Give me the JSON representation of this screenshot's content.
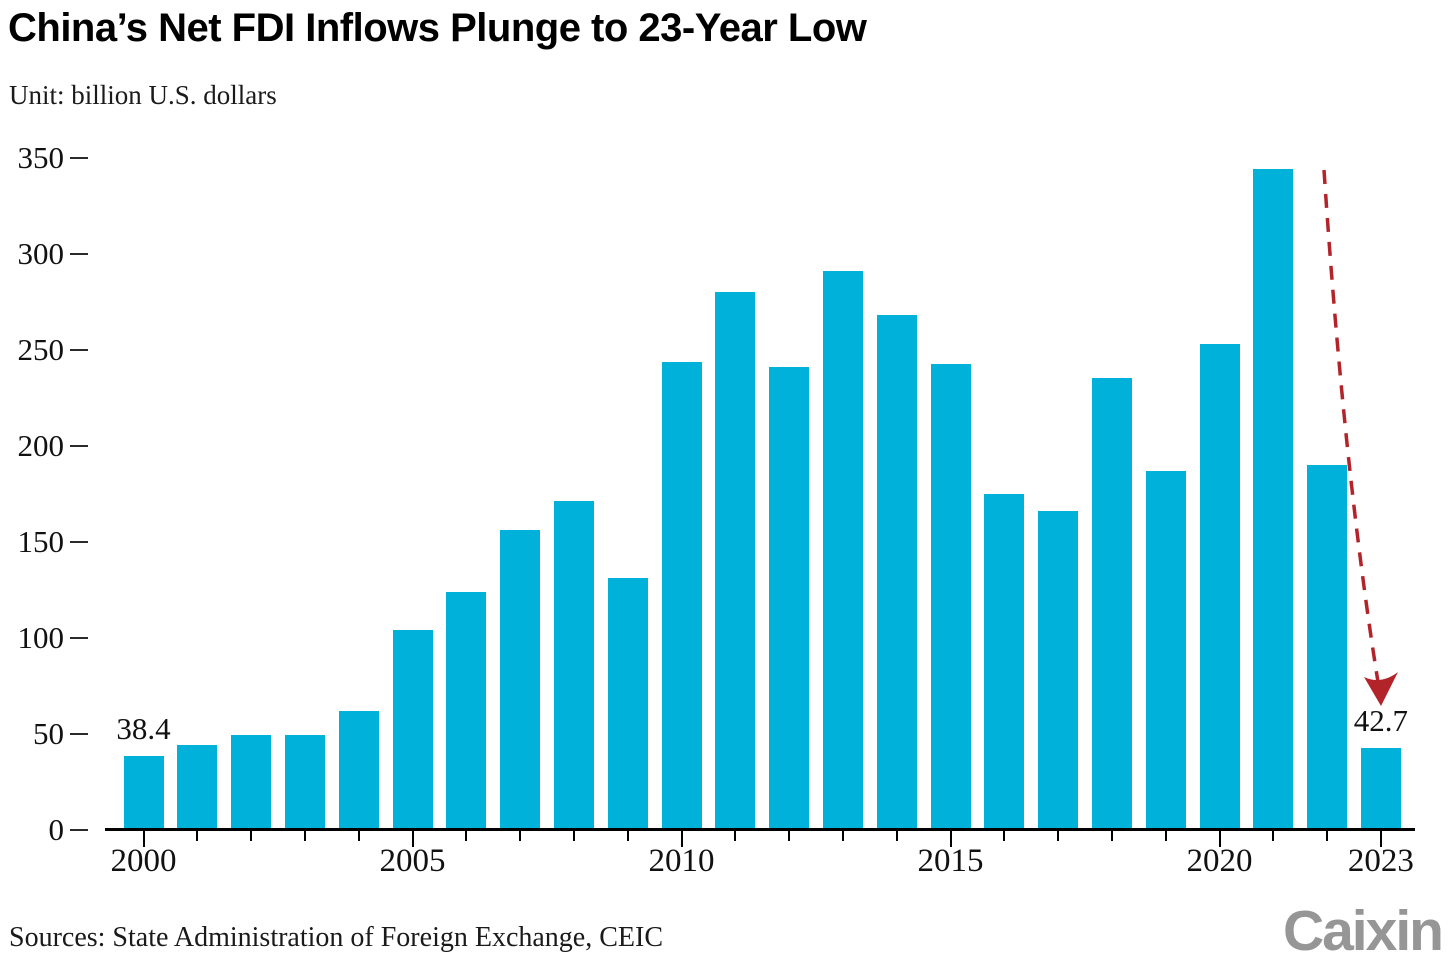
{
  "header": {
    "title": "China’s Net FDI Inflows Plunge to 23-Year Low",
    "unit_label": "Unit: billion U.S. dollars"
  },
  "footer": {
    "sources": "Sources: State Administration of Foreign Exchange, CEIC",
    "brand": "Caixin"
  },
  "colors": {
    "bar": "#00b2d9",
    "arrow": "#b3242a",
    "axis": "#000000",
    "brand_gray": "#969696"
  },
  "chart_data": {
    "type": "bar",
    "title": "China’s Net FDI Inflows Plunge to 23-Year Low",
    "unit": "billion U.S. dollars",
    "categories": [
      2000,
      2001,
      2002,
      2003,
      2004,
      2005,
      2006,
      2007,
      2008,
      2009,
      2010,
      2011,
      2012,
      2013,
      2014,
      2015,
      2016,
      2017,
      2018,
      2019,
      2020,
      2021,
      2022,
      2023
    ],
    "values": [
      38.4,
      44.2,
      49.3,
      49.5,
      62.1,
      104.1,
      124.1,
      156.2,
      171.5,
      131.1,
      243.7,
      280.1,
      241.2,
      290.9,
      268.1,
      242.5,
      174.8,
      166.1,
      235.4,
      187.2,
      253.1,
      344.1,
      190.2,
      42.7
    ],
    "xlabel": "",
    "ylabel": "",
    "ylim": [
      0,
      350
    ],
    "y_tick_step": 50,
    "y_tick_labels": [
      "0",
      "50",
      "100",
      "150",
      "200",
      "250",
      "300",
      "350"
    ],
    "x_tick_labels": [
      {
        "year": 2000,
        "label": "2000"
      },
      {
        "year": 2005,
        "label": "2005"
      },
      {
        "year": 2010,
        "label": "2010"
      },
      {
        "year": 2015,
        "label": "2015"
      },
      {
        "year": 2020,
        "label": "2020"
      },
      {
        "year": 2023,
        "label": "2023"
      }
    ],
    "annotations": [
      {
        "year": 2000,
        "text": "38.4"
      },
      {
        "year": 2023,
        "text": "42.7"
      }
    ],
    "arrow": {
      "style": "dashed",
      "from_year": 2021,
      "to_year": 2023,
      "direction": "down"
    },
    "grid": false,
    "legend_position": "none"
  }
}
